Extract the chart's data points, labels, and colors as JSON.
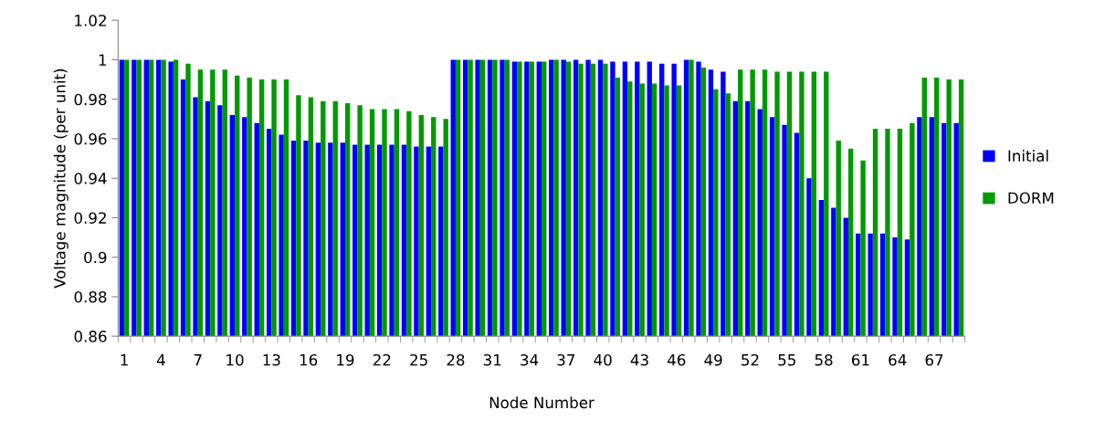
{
  "chart_data": {
    "type": "bar",
    "xlabel": "Node Number",
    "ylabel": "Voltage magnitude (per unit)",
    "categories": [
      "1",
      null,
      null,
      "4",
      null,
      null,
      "7",
      null,
      null,
      "10",
      null,
      null,
      "13",
      null,
      null,
      "16",
      null,
      null,
      "19",
      null,
      null,
      "22",
      null,
      null,
      "25",
      null,
      null,
      "28",
      null,
      null,
      "31",
      null,
      null,
      "34",
      null,
      null,
      "37",
      null,
      null,
      "40",
      null,
      null,
      "43",
      null,
      null,
      "46",
      null,
      null,
      "49",
      null,
      null,
      "52",
      null,
      null,
      "55",
      null,
      null,
      "58",
      null,
      null,
      "61",
      null,
      null,
      "64",
      null,
      null,
      "67",
      null,
      null
    ],
    "series": [
      {
        "name": "Initial",
        "color": "#0000ff",
        "values": [
          1,
          1,
          1,
          1,
          0.999,
          0.99,
          0.981,
          0.979,
          0.977,
          0.972,
          0.971,
          0.968,
          0.965,
          0.962,
          0.959,
          0.959,
          0.958,
          0.958,
          0.958,
          0.957,
          0.957,
          0.957,
          0.957,
          0.957,
          0.956,
          0.956,
          0.956,
          1,
          1,
          1,
          1,
          1,
          0.999,
          0.999,
          0.999,
          1,
          1,
          1,
          1,
          1,
          0.999,
          0.999,
          0.999,
          0.999,
          0.998,
          0.998,
          1,
          0.999,
          0.995,
          0.994,
          0.979,
          0.979,
          0.975,
          0.971,
          0.967,
          0.963,
          0.94,
          0.929,
          0.925,
          0.92,
          0.912,
          0.912,
          0.912,
          0.91,
          0.909,
          0.971,
          0.971,
          0.968,
          0.968
        ]
      },
      {
        "name": "DORM",
        "color": "#009900",
        "values": [
          1,
          1,
          1,
          1,
          1,
          0.998,
          0.995,
          0.995,
          0.995,
          0.992,
          0.991,
          0.99,
          0.99,
          0.99,
          0.982,
          0.981,
          0.979,
          0.979,
          0.978,
          0.977,
          0.975,
          0.975,
          0.975,
          0.974,
          0.972,
          0.971,
          0.97,
          1,
          1,
          1,
          1,
          1,
          0.999,
          0.999,
          0.999,
          1,
          0.999,
          0.998,
          0.998,
          0.998,
          0.991,
          0.989,
          0.988,
          0.988,
          0.987,
          0.987,
          1,
          0.996,
          0.985,
          0.983,
          0.995,
          0.995,
          0.995,
          0.994,
          0.994,
          0.994,
          0.994,
          0.994,
          0.959,
          0.955,
          0.949,
          0.965,
          0.965,
          0.965,
          0.968,
          0.991,
          0.991,
          0.99,
          0.99
        ]
      }
    ],
    "ylim": [
      0.86,
      1.02
    ],
    "yticks": [
      0.86,
      0.88,
      0.9,
      0.92,
      0.94,
      0.96,
      0.98,
      1,
      1.02
    ],
    "grid": false,
    "legend": "right"
  }
}
